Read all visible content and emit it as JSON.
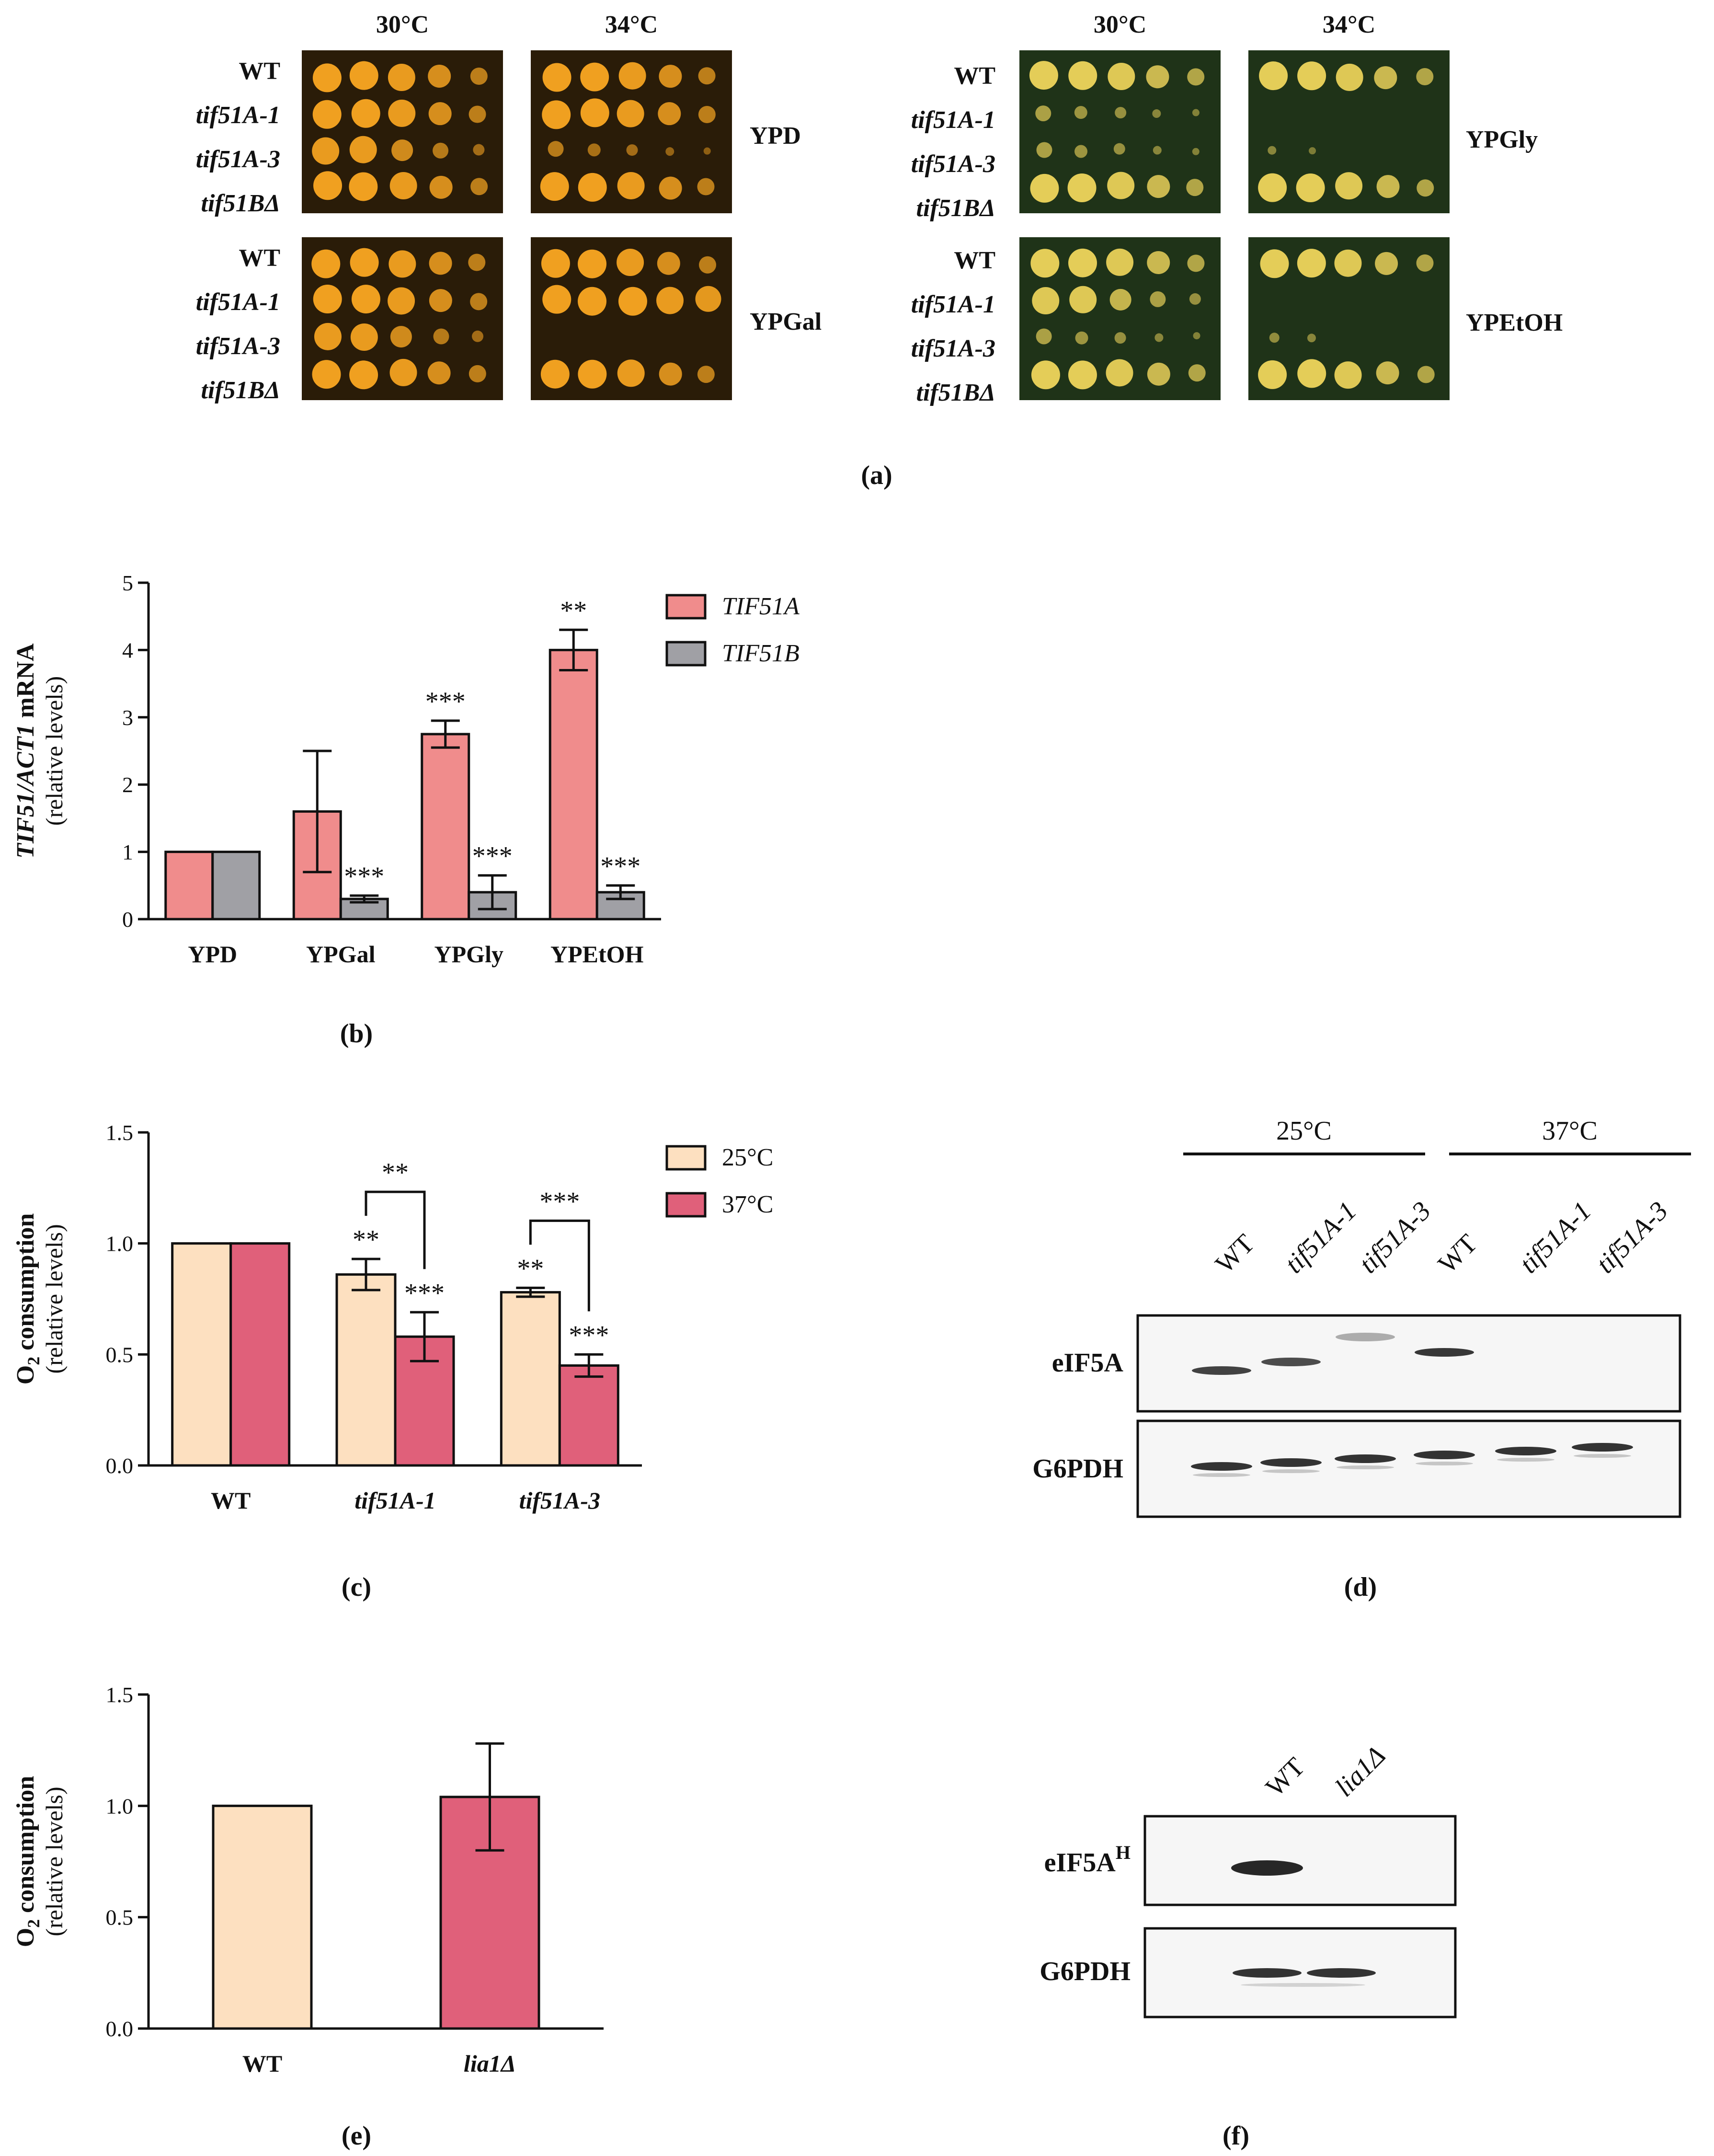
{
  "panel_a": {
    "label": "(a)",
    "left": {
      "temps": [
        "30°C",
        "34°C"
      ],
      "groups": [
        {
          "medium": "YPD",
          "strains": [
            "WT",
            "tif51A-1",
            "tif51A-3",
            "tif51BΔ"
          ]
        },
        {
          "medium": "YPGal",
          "strains": [
            "WT",
            "tif51A-1",
            "tif51A-3",
            "tif51BΔ"
          ]
        }
      ]
    },
    "right": {
      "temps": [
        "30°C",
        "34°C"
      ],
      "groups": [
        {
          "medium": "YPGly",
          "strains": [
            "WT",
            "tif51A-1",
            "tif51A-3",
            "tif51BΔ"
          ]
        },
        {
          "medium": "YPEtOH",
          "strains": [
            "WT",
            "tif51A-1",
            "tif51A-3",
            "tif51BΔ"
          ]
        }
      ]
    },
    "colors": {
      "left_plate": "#2a1c08",
      "left_spot": "#f0a020",
      "right_plate": "#1f3318",
      "right_spot": "#e4cd58"
    }
  },
  "panel_d": {
    "label": "(d)",
    "temps": [
      "25°C",
      "37°C"
    ],
    "lanes": [
      "WT",
      "tif51A-1",
      "tif51A-3",
      "WT",
      "tif51A-1",
      "tif51A-3"
    ],
    "rows": [
      "eIF5A",
      "G6PDH"
    ]
  },
  "panel_f": {
    "label": "(f)",
    "lanes": [
      "WT",
      "lia1Δ"
    ],
    "row1_main": "eIF5A",
    "row1_sup": "H",
    "row2": "G6PDH"
  },
  "chart_data": [
    {
      "id": "b",
      "panel_label": "(b)",
      "type": "bar",
      "title": "",
      "ylabel_line1": "TIF51/ACT1 mRNA",
      "ylabel_line2": "(relative levels)",
      "xlabel": "",
      "categories": [
        "YPD",
        "YPGal",
        "YPGly",
        "YPEtOH"
      ],
      "ylim": [
        0,
        5
      ],
      "yticks": [
        "0",
        "1",
        "2",
        "3",
        "4",
        "5"
      ],
      "series": [
        {
          "name": "TIF51A",
          "color": "#f08c8c",
          "values": [
            1.0,
            1.6,
            2.75,
            4.0
          ],
          "errors": [
            0,
            0.9,
            0.2,
            0.3
          ],
          "sig": [
            "",
            "",
            "***",
            "**"
          ]
        },
        {
          "name": "TIF51B",
          "color": "#a0a0a5",
          "values": [
            1.0,
            0.3,
            0.4,
            0.4
          ],
          "errors": [
            0,
            0.05,
            0.25,
            0.1
          ],
          "sig": [
            "",
            "***",
            "***",
            "***"
          ]
        }
      ],
      "legend_position": "top-right"
    },
    {
      "id": "c",
      "panel_label": "(c)",
      "type": "bar",
      "title": "",
      "ylabel_line1": "O2 consumption",
      "ylabel_line2": "(relative levels)",
      "xlabel": "",
      "categories": [
        "WT",
        "tif51A-1",
        "tif51A-3"
      ],
      "ylim": [
        0,
        1.5
      ],
      "yticks": [
        "0.0",
        "0.5",
        "1.0",
        "1.5"
      ],
      "series": [
        {
          "name": "25°C",
          "color": "#fde0c0",
          "values": [
            1.0,
            0.86,
            0.78
          ],
          "errors": [
            0,
            0.07,
            0.02
          ],
          "sig": [
            "",
            "**",
            "**"
          ]
        },
        {
          "name": "37°C",
          "color": "#e0607a",
          "values": [
            1.0,
            0.58,
            0.45
          ],
          "errors": [
            0,
            0.11,
            0.05
          ],
          "sig": [
            "",
            "***",
            "***"
          ]
        }
      ],
      "brackets": [
        {
          "category": "tif51A-1",
          "label": "**"
        },
        {
          "category": "tif51A-3",
          "label": "***"
        }
      ],
      "legend_position": "top-right"
    },
    {
      "id": "e",
      "panel_label": "(e)",
      "type": "bar",
      "title": "",
      "ylabel_line1": "O2 consumption",
      "ylabel_line2": "(relative levels)",
      "xlabel": "",
      "categories": [
        "WT",
        "lia1Δ"
      ],
      "ylim": [
        0,
        1.5
      ],
      "yticks": [
        "0.0",
        "0.5",
        "1.0",
        "1.5"
      ],
      "series": [
        {
          "name": "bars",
          "values": [
            1.0,
            1.04
          ],
          "errors": [
            0,
            0.24
          ],
          "colors": [
            "#fde0c0",
            "#e0607a"
          ],
          "sig": [
            "",
            ""
          ]
        }
      ],
      "legend_position": "none"
    }
  ]
}
